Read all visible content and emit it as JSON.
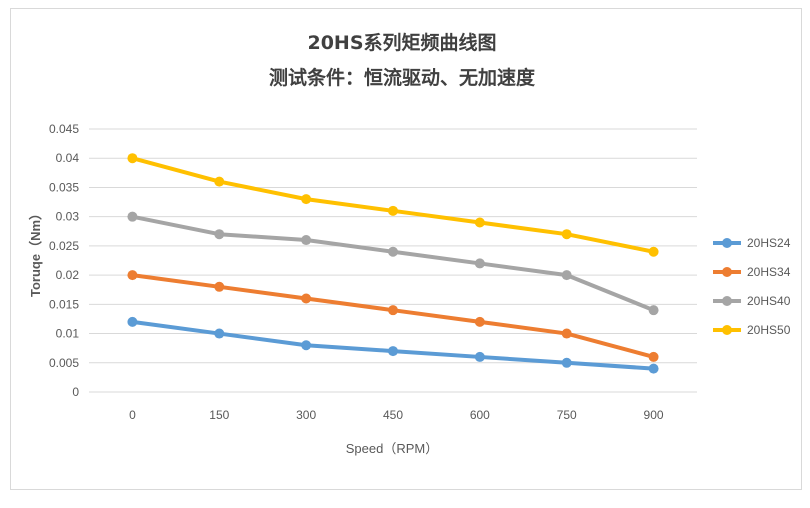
{
  "chart_data": {
    "type": "line",
    "title": "20HS系列矩频曲线图",
    "subtitle": "测试条件：恒流驱动、无加速度",
    "xlabel": "Speed（RPM）",
    "ylabel": "Toruqe（Nm）",
    "categories": [
      "0",
      "150",
      "300",
      "450",
      "600",
      "750",
      "900"
    ],
    "ylim": [
      0,
      0.045
    ],
    "yticks": [
      "0",
      "0.005",
      "0.01",
      "0.015",
      "0.02",
      "0.025",
      "0.03",
      "0.035",
      "0.04",
      "0.045"
    ],
    "grid": true,
    "legend_position": "right",
    "series": [
      {
        "name": "20HS24",
        "color": "#5b9bd5",
        "values": [
          0.012,
          0.01,
          0.008,
          0.007,
          0.006,
          0.005,
          0.004
        ]
      },
      {
        "name": "20HS34",
        "color": "#ed7d31",
        "values": [
          0.02,
          0.018,
          0.016,
          0.014,
          0.012,
          0.01,
          0.006
        ]
      },
      {
        "name": "20HS40",
        "color": "#a5a5a5",
        "values": [
          0.03,
          0.027,
          0.026,
          0.024,
          0.022,
          0.02,
          0.014
        ]
      },
      {
        "name": "20HS50",
        "color": "#ffc000",
        "values": [
          0.04,
          0.036,
          0.033,
          0.031,
          0.029,
          0.027,
          0.024
        ]
      }
    ]
  }
}
